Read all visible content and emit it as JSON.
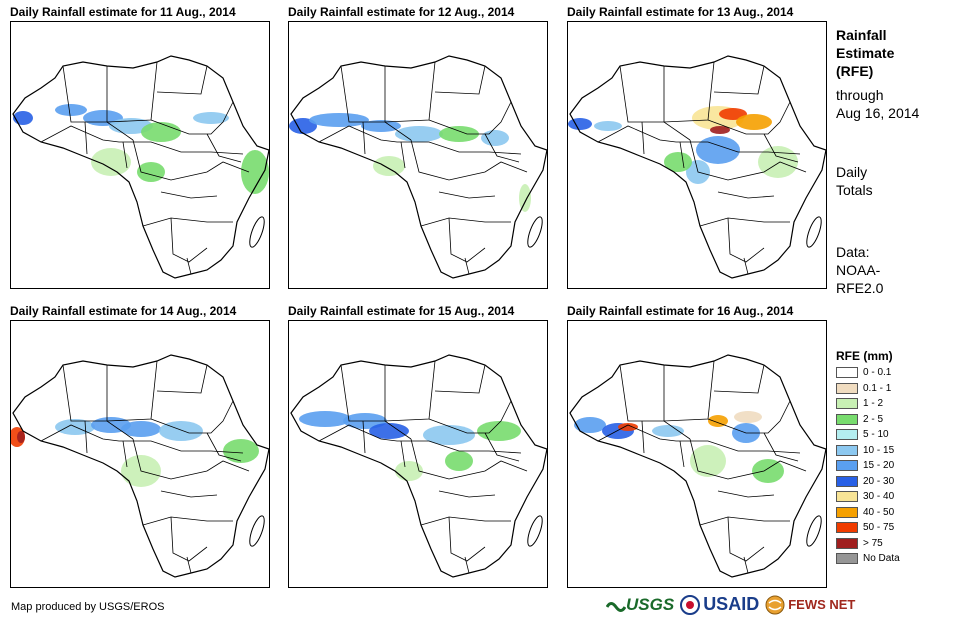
{
  "panels": [
    {
      "title": "Daily Rainfall estimate for 11 Aug., 2014"
    },
    {
      "title": "Daily Rainfall estimate for 12 Aug., 2014"
    },
    {
      "title": "Daily Rainfall estimate for 13 Aug., 2014"
    },
    {
      "title": "Daily Rainfall estimate for 14 Aug., 2014"
    },
    {
      "title": "Daily Rainfall estimate for 15 Aug., 2014"
    },
    {
      "title": "Daily Rainfall estimate for 16 Aug., 2014"
    }
  ],
  "side": {
    "title_line1": "Rainfall",
    "title_line2": "Estimate",
    "title_line3": "(RFE)",
    "through_line1": "through",
    "through_line2": "Aug 16, 2014",
    "totals_line1": "Daily",
    "totals_line2": "Totals",
    "data_line1": "Data:",
    "data_line2": "NOAA-",
    "data_line3": "RFE2.0"
  },
  "legend": {
    "title": "RFE (mm)",
    "items": [
      {
        "label": "0 - 0.1",
        "color": "#ffffff"
      },
      {
        "label": "0.1 - 1",
        "color": "#f0dcc0"
      },
      {
        "label": "1 - 2",
        "color": "#c8f0b4"
      },
      {
        "label": "2 - 5",
        "color": "#78dc6e"
      },
      {
        "label": "5 - 10",
        "color": "#b4eef0"
      },
      {
        "label": "10 - 15",
        "color": "#8cc8f0"
      },
      {
        "label": "15 - 20",
        "color": "#5a9ff0"
      },
      {
        "label": "20 - 30",
        "color": "#2860e6"
      },
      {
        "label": "30 - 40",
        "color": "#f8e496"
      },
      {
        "label": "40 - 50",
        "color": "#f5a000"
      },
      {
        "label": "50 - 75",
        "color": "#f03c00"
      },
      {
        "label": "> 75",
        "color": "#a01e1e"
      },
      {
        "label": "No Data",
        "color": "#969696"
      }
    ]
  },
  "footer": {
    "credit": "Map produced by USGS/EROS",
    "logo_usgs": "USGS",
    "logo_usaid": "USAID",
    "logo_fews": "FEWS NET"
  }
}
